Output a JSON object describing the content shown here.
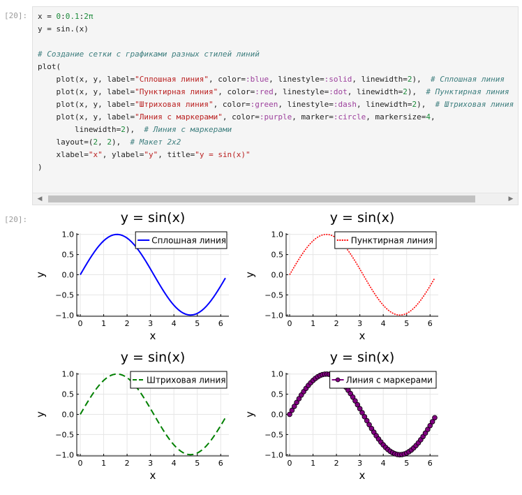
{
  "input_prompt": "[20]:",
  "output_prompt": "[20]:",
  "code_lines": [
    [
      {
        "t": "x = ",
        "c": ""
      },
      {
        "t": "0",
        "c": "num"
      },
      {
        "t": ":",
        "c": ""
      },
      {
        "t": "0.1",
        "c": "num"
      },
      {
        "t": ":",
        "c": ""
      },
      {
        "t": "2π",
        "c": "num"
      }
    ],
    [
      {
        "t": "y = sin.(x)",
        "c": ""
      }
    ],
    [],
    [
      {
        "t": "# Создание сетки с графиками разных стилей линий",
        "c": "cm"
      }
    ],
    [
      {
        "t": "plot(",
        "c": ""
      }
    ],
    [
      {
        "t": "    plot(x, y, label=",
        "c": ""
      },
      {
        "t": "\"Сплошная линия\"",
        "c": "str"
      },
      {
        "t": ", color=",
        "c": ""
      },
      {
        "t": ":blue",
        "c": "sym"
      },
      {
        "t": ", linestyle=",
        "c": ""
      },
      {
        "t": ":solid",
        "c": "sym"
      },
      {
        "t": ", linewidth=",
        "c": ""
      },
      {
        "t": "2",
        "c": "num"
      },
      {
        "t": "),  ",
        "c": ""
      },
      {
        "t": "# Сплошная линия",
        "c": "cm"
      }
    ],
    [
      {
        "t": "    plot(x, y, label=",
        "c": ""
      },
      {
        "t": "\"Пунктирная линия\"",
        "c": "str"
      },
      {
        "t": ", color=",
        "c": ""
      },
      {
        "t": ":red",
        "c": "sym"
      },
      {
        "t": ", linestyle=",
        "c": ""
      },
      {
        "t": ":dot",
        "c": "sym"
      },
      {
        "t": ", linewidth=",
        "c": ""
      },
      {
        "t": "2",
        "c": "num"
      },
      {
        "t": "),  ",
        "c": ""
      },
      {
        "t": "# Пунктирная линия",
        "c": "cm"
      }
    ],
    [
      {
        "t": "    plot(x, y, label=",
        "c": ""
      },
      {
        "t": "\"Штриховая линия\"",
        "c": "str"
      },
      {
        "t": ", color=",
        "c": ""
      },
      {
        "t": ":green",
        "c": "sym"
      },
      {
        "t": ", linestyle=",
        "c": ""
      },
      {
        "t": ":dash",
        "c": "sym"
      },
      {
        "t": ", linewidth=",
        "c": ""
      },
      {
        "t": "2",
        "c": "num"
      },
      {
        "t": "),  ",
        "c": ""
      },
      {
        "t": "# Штриховая линия",
        "c": "cm"
      }
    ],
    [
      {
        "t": "    plot(x, y, label=",
        "c": ""
      },
      {
        "t": "\"Линия с маркерами\"",
        "c": "str"
      },
      {
        "t": ", color=",
        "c": ""
      },
      {
        "t": ":purple",
        "c": "sym"
      },
      {
        "t": ", marker=",
        "c": ""
      },
      {
        "t": ":circle",
        "c": "sym"
      },
      {
        "t": ", markersize=",
        "c": ""
      },
      {
        "t": "4",
        "c": "num"
      },
      {
        "t": ",",
        "c": ""
      }
    ],
    [
      {
        "t": "        linewidth=",
        "c": ""
      },
      {
        "t": "2",
        "c": "num"
      },
      {
        "t": "),  ",
        "c": ""
      },
      {
        "t": "# Линия с маркерами",
        "c": "cm"
      }
    ],
    [
      {
        "t": "    layout=(",
        "c": ""
      },
      {
        "t": "2",
        "c": "num"
      },
      {
        "t": ", ",
        "c": ""
      },
      {
        "t": "2",
        "c": "num"
      },
      {
        "t": "),  ",
        "c": ""
      },
      {
        "t": "# Макет 2x2",
        "c": "cm"
      }
    ],
    [
      {
        "t": "    xlabel=",
        "c": ""
      },
      {
        "t": "\"x\"",
        "c": "str"
      },
      {
        "t": ", ylabel=",
        "c": ""
      },
      {
        "t": "\"y\"",
        "c": "str"
      },
      {
        "t": ", title=",
        "c": ""
      },
      {
        "t": "\"y = sin(x)\"",
        "c": "str"
      },
      {
        "t": "",
        "c": ""
      }
    ],
    [
      {
        "t": ")",
        "c": ""
      }
    ]
  ],
  "scrollbar": {
    "left_arrow": "◀",
    "right_arrow": "▶"
  },
  "chart_data": [
    {
      "type": "line",
      "title": "y = sin(x)",
      "xlabel": "x",
      "ylabel": "y",
      "x": {
        "start": 0,
        "step": 0.1,
        "end": 6.2
      },
      "function": "sin(x)",
      "series": [
        {
          "name": "Сплошная линия",
          "color": "#0000ff",
          "linestyle": "solid",
          "linewidth": 2,
          "marker": "none"
        }
      ],
      "xlim": [
        0,
        6.2
      ],
      "ylim": [
        -1,
        1
      ],
      "xticks": [
        "0",
        "1",
        "2",
        "3",
        "4",
        "5",
        "6"
      ],
      "yticks": [
        "1.0",
        "0.5",
        "0.0",
        "-0.5",
        "-1.0"
      ],
      "grid": true,
      "legend": "top-right"
    },
    {
      "type": "line",
      "title": "y = sin(x)",
      "xlabel": "x",
      "ylabel": "y",
      "x": {
        "start": 0,
        "step": 0.1,
        "end": 6.2
      },
      "function": "sin(x)",
      "series": [
        {
          "name": "Пунктирная линия",
          "color": "#ff0000",
          "linestyle": "dot",
          "linewidth": 2,
          "marker": "none"
        }
      ],
      "xlim": [
        0,
        6.2
      ],
      "ylim": [
        -1,
        1
      ],
      "xticks": [
        "0",
        "1",
        "2",
        "3",
        "4",
        "5",
        "6"
      ],
      "yticks": [
        "1.0",
        "0.5",
        "0.0",
        "-0.5",
        "-1.0"
      ],
      "grid": true,
      "legend": "top-right"
    },
    {
      "type": "line",
      "title": "y = sin(x)",
      "xlabel": "x",
      "ylabel": "y",
      "x": {
        "start": 0,
        "step": 0.1,
        "end": 6.2
      },
      "function": "sin(x)",
      "series": [
        {
          "name": "Штриховая линия",
          "color": "#008000",
          "linestyle": "dash",
          "linewidth": 2,
          "marker": "none"
        }
      ],
      "xlim": [
        0,
        6.2
      ],
      "ylim": [
        -1,
        1
      ],
      "xticks": [
        "0",
        "1",
        "2",
        "3",
        "4",
        "5",
        "6"
      ],
      "yticks": [
        "1.0",
        "0.5",
        "0.0",
        "-0.5",
        "-1.0"
      ],
      "grid": true,
      "legend": "top-right"
    },
    {
      "type": "line",
      "title": "y = sin(x)",
      "xlabel": "x",
      "ylabel": "y",
      "x": {
        "start": 0,
        "step": 0.1,
        "end": 6.2
      },
      "function": "sin(x)",
      "series": [
        {
          "name": "Линия с маркерами",
          "color": "#800080",
          "linestyle": "solid",
          "linewidth": 2,
          "marker": "circle",
          "markersize": 4
        }
      ],
      "xlim": [
        0,
        6.2
      ],
      "ylim": [
        -1,
        1
      ],
      "xticks": [
        "0",
        "1",
        "2",
        "3",
        "4",
        "5",
        "6"
      ],
      "yticks": [
        "1.0",
        "0.5",
        "0.0",
        "-0.5",
        "-1.0"
      ],
      "grid": true,
      "legend": "top-right"
    }
  ]
}
